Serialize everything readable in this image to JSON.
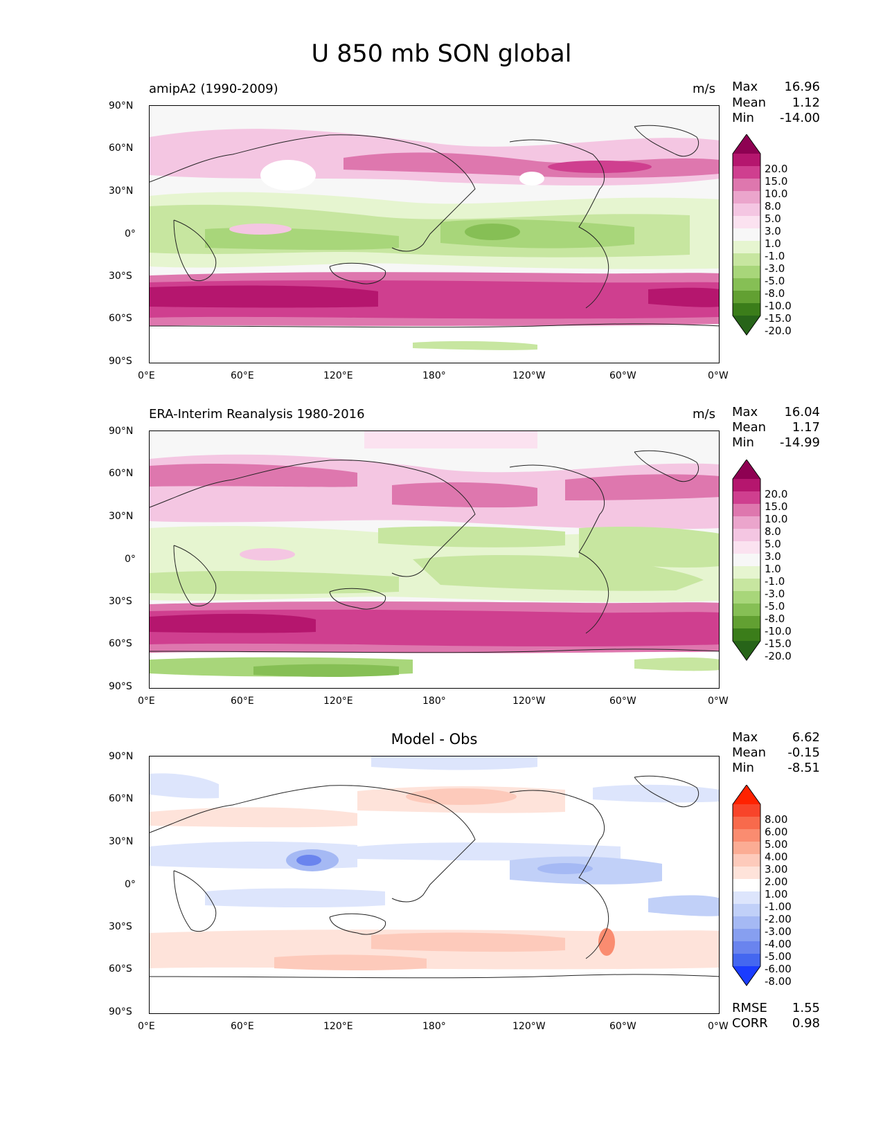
{
  "title": "U 850 mb SON global",
  "x_ticks": [
    "0°E",
    "60°E",
    "120°E",
    "180°",
    "120°W",
    "60°W",
    "0°W"
  ],
  "y_ticks": [
    "90°N",
    "60°N",
    "30°N",
    "0°",
    "30°S",
    "60°S",
    "90°S"
  ],
  "panels": [
    {
      "left_title": "amipA2 (1990-2009)",
      "units": "m/s",
      "stats": {
        "max_label": "Max",
        "max": "16.96",
        "mean_label": "Mean",
        "mean": "1.12",
        "min_label": "Min",
        "min": "-14.00"
      }
    },
    {
      "left_title": "ERA-Interim Reanalysis 1980-2016",
      "units": "m/s",
      "stats": {
        "max_label": "Max",
        "max": "16.04",
        "mean_label": "Mean",
        "mean": "1.17",
        "min_label": "Min",
        "min": "-14.99"
      }
    },
    {
      "center_title": "Model - Obs",
      "stats": {
        "max_label": "Max",
        "max": "6.62",
        "mean_label": "Mean",
        "mean": "-0.15",
        "min_label": "Min",
        "min": "-8.51"
      },
      "metrics": {
        "rmse_label": "RMSE",
        "rmse": "1.55",
        "corr_label": "CORR",
        "corr": "0.98"
      }
    }
  ],
  "colorbar_a": {
    "levels": [
      "20.0",
      "15.0",
      "10.0",
      "8.0",
      "5.0",
      "3.0",
      "1.0",
      "-1.0",
      "-3.0",
      "-5.0",
      "-8.0",
      "-10.0",
      "-15.0",
      "-20.0"
    ],
    "colors": [
      "#8e0152",
      "#b5166e",
      "#cf3f8f",
      "#de77ae",
      "#eba5cc",
      "#f4c6e2",
      "#fbe2f0",
      "#f7f7f7",
      "#e6f5d0",
      "#c7e6a0",
      "#a8d67a",
      "#86bf55",
      "#62a032",
      "#3b7d1a",
      "#276419"
    ]
  },
  "colorbar_b": {
    "levels": [
      "8.00",
      "6.00",
      "5.00",
      "4.00",
      "3.00",
      "2.00",
      "1.00",
      "-1.00",
      "-2.00",
      "-3.00",
      "-4.00",
      "-5.00",
      "-6.00",
      "-8.00"
    ],
    "colors": [
      "#ff2200",
      "#f8442a",
      "#f86a4c",
      "#fa8c70",
      "#fbac94",
      "#fdcabb",
      "#fee3da",
      "#ffffff",
      "#dde5fc",
      "#c1d0f8",
      "#a5b9f4",
      "#879ff0",
      "#6a84ee",
      "#4467f0",
      "#1a3cff"
    ]
  }
}
